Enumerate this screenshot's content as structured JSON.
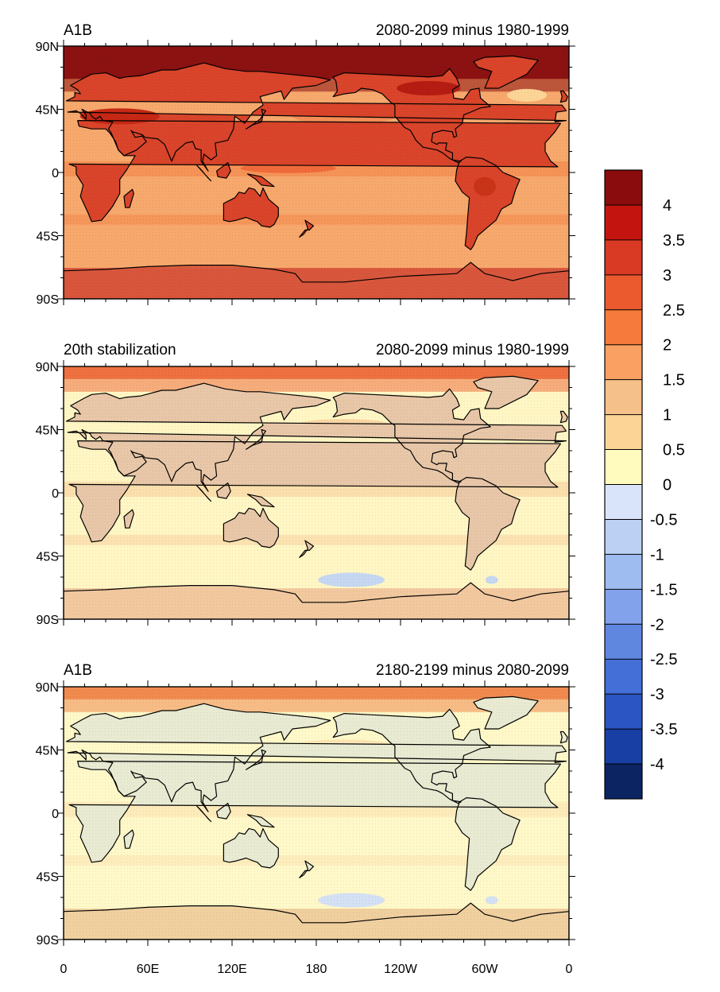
{
  "panels": [
    {
      "left_title": "A1B",
      "right_title": "2080-2099 minus 1980-1999",
      "scenario": "warm",
      "colors": {
        "land_base": "#d9442a",
        "ocean_base": "#f7a86c",
        "arctic": "#8c1212",
        "antarctic": "#d8563c",
        "tropics_band": "#f38a4f"
      }
    },
    {
      "left_title": "20th stabilization",
      "right_title": "2080-2099 minus 1980-1999",
      "scenario": "mild",
      "colors": {
        "land_base": "#e8c7a8",
        "ocean_base": "#fff6c4",
        "arctic": "#ee7040",
        "antarctic": "#f2c89e",
        "tropics_band": "#f9d6a3",
        "cold_patch": "#c6d7f2"
      }
    },
    {
      "left_title": "A1B",
      "right_title": "2180-2199 minus 2080-2099",
      "scenario": "faint",
      "colors": {
        "land_base": "#e8ead2",
        "ocean_base": "#fff8c8",
        "arctic": "#f08a4e",
        "antarctic": "#f0cf9e",
        "tropics_band": "#fce6b4",
        "cold_patch": "#d4e0f4"
      }
    }
  ],
  "lat_labels": [
    "90N",
    "45N",
    "0",
    "45S",
    "90S"
  ],
  "lon_labels": [
    "0",
    "60E",
    "120E",
    "180",
    "120W",
    "60W",
    "0"
  ],
  "colorbar": {
    "labels": [
      "4",
      "3.5",
      "3",
      "2.5",
      "2",
      "1.5",
      "1",
      "0.5",
      "0",
      "-0.5",
      "-1",
      "-1.5",
      "-2",
      "-2.5",
      "-3",
      "-3.5",
      "-4"
    ],
    "colors": [
      "#8b0c0c",
      "#c4140f",
      "#d83a23",
      "#ea5a2e",
      "#f57a3c",
      "#f9a062",
      "#f6c08a",
      "#fcd596",
      "#fffbbe",
      "#d9e3fa",
      "#bcd0f4",
      "#9fbcf0",
      "#82a3ec",
      "#6087e0",
      "#436fd6",
      "#2b55c2",
      "#1840a4",
      "#0c2462"
    ]
  }
}
